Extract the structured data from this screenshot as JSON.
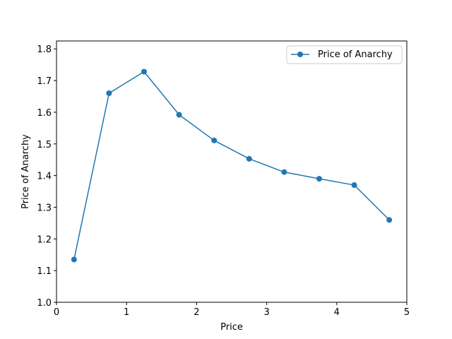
{
  "chart_data": {
    "type": "line",
    "title": "",
    "xlabel": "Price",
    "ylabel": "Price of Anarchy",
    "xlim": [
      0,
      5
    ],
    "ylim": [
      1.0,
      1.825
    ],
    "xticks": [
      0,
      1,
      2,
      3,
      4,
      5
    ],
    "xtick_labels": [
      "0",
      "1",
      "2",
      "3",
      "4",
      "5"
    ],
    "yticks": [
      1.0,
      1.1,
      1.2,
      1.3,
      1.4,
      1.5,
      1.6,
      1.7,
      1.8
    ],
    "ytick_labels": [
      "1.0",
      "1.1",
      "1.2",
      "1.3",
      "1.4",
      "1.5",
      "1.6",
      "1.7",
      "1.8"
    ],
    "grid": false,
    "legend_position": "top-right",
    "series": [
      {
        "name": "Price of Anarchy",
        "color": "#1f77b4",
        "marker": "circle",
        "x": [
          0.25,
          0.75,
          1.25,
          1.75,
          2.25,
          2.75,
          3.25,
          3.75,
          4.25,
          4.75
        ],
        "y": [
          1.135,
          1.66,
          1.728,
          1.592,
          1.511,
          1.453,
          1.411,
          1.39,
          1.37,
          1.26
        ]
      }
    ]
  }
}
